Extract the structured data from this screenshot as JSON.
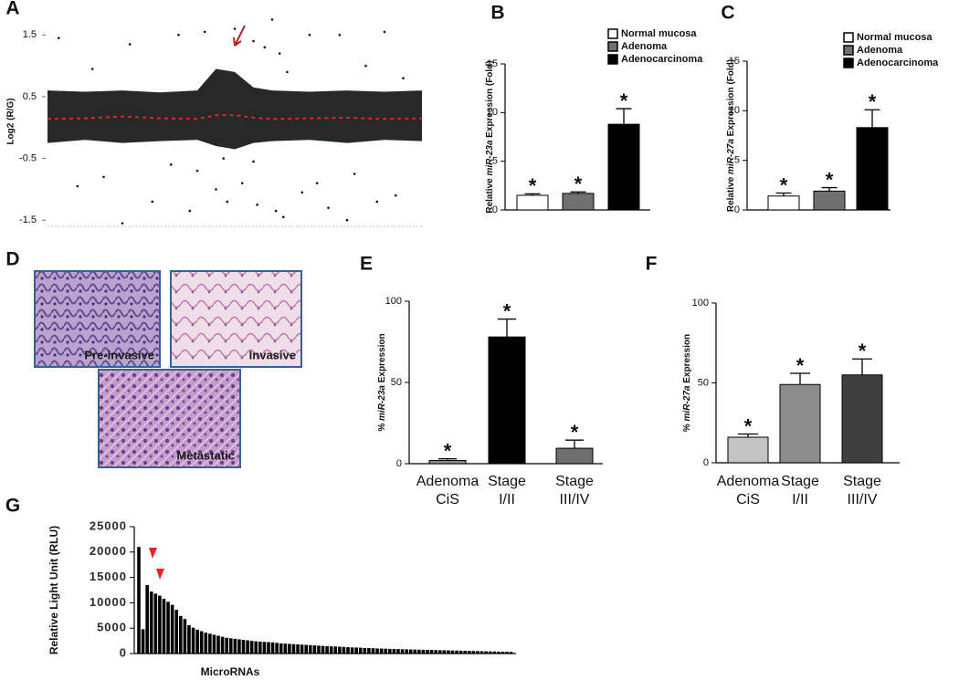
{
  "chart_data": [
    {
      "type": "scatter",
      "label": "A",
      "ylabel": "Log2 (R/G)",
      "xlim": [
        0,
        100
      ],
      "ylim": [
        -1.6,
        1.8
      ],
      "yticks": [
        1.5,
        0.5,
        -0.5,
        -1.5
      ],
      "points": {
        "color": "#111111",
        "x": [
          3,
          12,
          22,
          35,
          42,
          50,
          55,
          58,
          60,
          62,
          64,
          70,
          78,
          85,
          90,
          95,
          8,
          15,
          28,
          38,
          45,
          48,
          52,
          56,
          63,
          68,
          75,
          82,
          88,
          93,
          20,
          33,
          40,
          47,
          55,
          61,
          72,
          80
        ],
        "y": [
          1.45,
          0.95,
          1.35,
          1.5,
          1.55,
          1.6,
          1.4,
          1.3,
          1.75,
          1.2,
          0.9,
          1.5,
          1.5,
          1.0,
          1.55,
          0.8,
          -0.95,
          -0.8,
          -1.2,
          -1.35,
          -1.0,
          -1.2,
          -0.9,
          -1.25,
          -1.45,
          -1.05,
          -1.3,
          -0.75,
          -1.2,
          -1.1,
          -1.55,
          -0.6,
          -0.7,
          -0.5,
          -0.55,
          -1.35,
          -0.9,
          -1.5
        ]
      },
      "band": {
        "color": "#111111",
        "x": [
          0,
          10,
          20,
          30,
          40,
          45,
          50,
          55,
          60,
          70,
          80,
          90,
          100
        ],
        "upper": [
          0.6,
          0.58,
          0.6,
          0.57,
          0.6,
          0.95,
          0.9,
          0.65,
          0.6,
          0.58,
          0.6,
          0.58,
          0.6
        ],
        "lower": [
          -0.25,
          -0.2,
          -0.25,
          -0.22,
          -0.2,
          -0.3,
          -0.35,
          -0.25,
          -0.22,
          -0.2,
          -0.25,
          -0.2,
          -0.22
        ]
      },
      "trend": {
        "color": "#e0262b",
        "values": [
          0.14,
          0.15,
          0.18,
          0.15,
          0.14,
          0.2,
          0.2,
          0.16,
          0.14,
          0.15,
          0.16,
          0.14,
          0.15
        ]
      }
    },
    {
      "type": "bar",
      "label": "B",
      "legend": true,
      "ylabel_parts": [
        "Relative ",
        "miR-23a",
        " Expression (Fold)"
      ],
      "categories": [
        "Normal mucosa",
        "Adenoma",
        "Adenocarcinoma"
      ],
      "values": [
        1.5,
        1.7,
        8.8
      ],
      "errors": [
        0.15,
        0.15,
        1.6
      ],
      "annotations": [
        "*",
        "*",
        "*"
      ],
      "colors": [
        "#ffffff",
        "#707070",
        "#000000"
      ],
      "ylim": [
        0,
        15
      ],
      "yticks": [
        0,
        5,
        10,
        15
      ]
    },
    {
      "type": "bar",
      "label": "C",
      "legend": true,
      "ylabel_parts": [
        "Relative ",
        "miR-27a",
        " Expression (Fold)"
      ],
      "categories": [
        "Normal mucosa",
        "Adenoma",
        "Adenocarcinoma"
      ],
      "values": [
        1.4,
        1.9,
        8.3
      ],
      "errors": [
        0.3,
        0.35,
        1.8
      ],
      "annotations": [
        "*",
        "*",
        "*"
      ],
      "colors": [
        "#ffffff",
        "#707070",
        "#000000"
      ],
      "ylim": [
        0,
        15
      ],
      "yticks": [
        0,
        5,
        10,
        15
      ]
    },
    {
      "type": "images",
      "label": "D",
      "labels": [
        "Pre-invasive",
        "Invasive",
        "Metastatic"
      ]
    },
    {
      "type": "bar",
      "label": "E",
      "legend": false,
      "ylabel_parts": [
        "% ",
        "miR-23a",
        " Expression"
      ],
      "categories": [
        [
          "Adenoma",
          "CiS"
        ],
        [
          "Stage",
          "I/II"
        ],
        [
          "Stage",
          "III/IV"
        ]
      ],
      "values": [
        2,
        78,
        9.5
      ],
      "errors": [
        1,
        11,
        5
      ],
      "annotations": [
        "*",
        "*",
        "*"
      ],
      "colors": [
        "#8a8a8a",
        "#000000",
        "#6e6e6e"
      ],
      "ylim": [
        0,
        100
      ],
      "yticks": [
        0,
        50,
        100
      ]
    },
    {
      "type": "bar",
      "label": "F",
      "legend": false,
      "ylabel_parts": [
        "% ",
        "miR-27a",
        " Expression"
      ],
      "categories": [
        [
          "Adenoma",
          "CiS"
        ],
        [
          "Stage",
          "I/II"
        ],
        [
          "Stage",
          "III/IV"
        ]
      ],
      "values": [
        16,
        49,
        55
      ],
      "errors": [
        2,
        7,
        10
      ],
      "annotations": [
        "*",
        "*",
        "*"
      ],
      "colors": [
        "#c4c4c4",
        "#8c8c8c",
        "#3f3f3f"
      ],
      "ylim": [
        0,
        100
      ],
      "yticks": [
        0,
        50,
        100
      ]
    },
    {
      "type": "bar",
      "label": "G",
      "legend": false,
      "ylabel": "Relative Light Unit (RLU)",
      "xlabel": "MicroRNAs",
      "colors": [
        "#000000"
      ],
      "values": [
        21000,
        4800,
        13500,
        12200,
        11800,
        11400,
        10800,
        10200,
        9600,
        8600,
        7400,
        6800,
        5600,
        5100,
        4700,
        4400,
        4100,
        3900,
        3700,
        3500,
        3300,
        3100,
        3000,
        2900,
        2800,
        2700,
        2600,
        2500,
        2400,
        2350,
        2300,
        2250,
        2200,
        2100,
        2000,
        1950,
        1900,
        1850,
        1800,
        1750,
        1700,
        1650,
        1600,
        1550,
        1500,
        1450,
        1400,
        1380,
        1350,
        1300,
        1250,
        1200,
        1180,
        1150,
        1100,
        1080,
        1050,
        1000,
        980,
        950,
        920,
        900,
        880,
        850,
        820,
        800,
        780,
        760,
        740,
        720,
        700,
        680,
        660,
        640,
        620,
        600,
        580,
        560,
        540,
        520,
        500,
        480,
        460,
        440,
        420,
        400,
        380,
        360,
        340,
        320
      ],
      "ylim": [
        0,
        25000
      ],
      "yticks": [
        0,
        5000,
        10000,
        15000,
        20000,
        25000
      ]
    }
  ]
}
